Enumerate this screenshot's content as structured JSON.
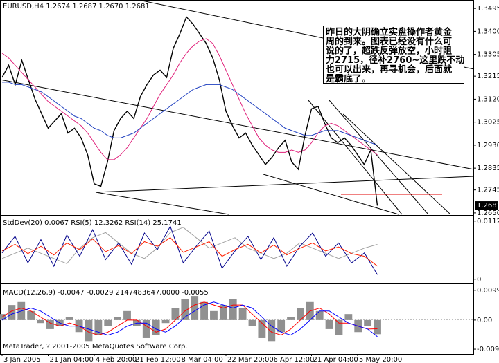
{
  "chart_data": [
    {
      "type": "line",
      "title": "EURUSD,H4 1.2674 1.2687 1.2670 1.2681",
      "annotation": [
        "昨日的大阴确立实盘操作者黄金",
        "周的到来。图表已经没有什么可",
        "说的了，超跌反弹放空，小时阻",
        "力2715，径补2760~这里跌不动",
        "也可以出来，再寻机会，后面就",
        "是霸底了。"
      ],
      "last_price": 1.2681,
      "ylim": [
        1.2644,
        1.3524
      ],
      "yticks": [
        1.3495,
        {
          "value": 1.34,
          "label": "1.3400"
        },
        1.3305,
        1.3215,
        {
          "value": 1.312,
          "label": "1.3120"
        },
        1.3025,
        {
          "value": 1.293,
          "label": "1.2930"
        },
        1.2835,
        1.2745,
        {
          "value": 1.265,
          "label": "1.2650"
        }
      ],
      "xticks": [
        {
          "value": 0,
          "label": "3 Jan 2005"
        },
        {
          "value": 7,
          "label": "21 Jan 04:00"
        },
        {
          "value": 14,
          "label": "4 Feb 20:00"
        },
        {
          "value": 20,
          "label": "21 Feb 12:00"
        },
        {
          "value": 27,
          "label": "8 Mar 04:00"
        },
        {
          "value": 34,
          "label": "22 Mar 20:00"
        },
        {
          "value": 41,
          "label": "6 Apr 12:00"
        },
        {
          "value": 47,
          "label": "21 Apr 04:00"
        },
        {
          "value": 54,
          "label": "5 May 20:00"
        }
      ],
      "series": [
        {
          "color": "#000000",
          "values": [
            1.321,
            1.326,
            1.318,
            1.328,
            1.32,
            1.312,
            1.306,
            1.3,
            1.303,
            1.306,
            1.298,
            1.3,
            1.296,
            1.289,
            1.277,
            1.276,
            1.286,
            1.299,
            1.304,
            1.307,
            1.304,
            1.313,
            1.318,
            1.322,
            1.324,
            1.321,
            1.333,
            1.339,
            1.346,
            1.343,
            1.339,
            1.335,
            1.329,
            1.32,
            1.307,
            1.301,
            1.296,
            1.298,
            1.293,
            1.289,
            1.285,
            1.288,
            1.292,
            1.295,
            1.286,
            1.283,
            1.297,
            1.308,
            1.309,
            1.302,
            1.296,
            1.294,
            1.296,
            1.293,
            1.289,
            1.285,
            1.291,
            1.268
          ]
        },
        {
          "color": "#e0207a",
          "values": [
            1.331,
            1.329,
            1.326,
            1.323,
            1.32,
            1.317,
            1.314,
            1.311,
            1.309,
            1.307,
            1.305,
            1.303,
            1.301,
            1.298,
            1.294,
            1.29,
            1.287,
            1.287,
            1.289,
            1.292,
            1.296,
            1.3,
            1.304,
            1.309,
            1.314,
            1.318,
            1.322,
            1.327,
            1.331,
            1.334,
            1.336,
            1.337,
            1.335,
            1.33,
            1.324,
            1.318,
            1.312,
            1.306,
            1.301,
            1.296,
            1.293,
            1.291,
            1.29,
            1.29,
            1.291,
            1.29,
            1.291,
            1.294,
            1.298,
            1.301,
            1.302,
            1.301,
            1.299,
            1.297,
            1.295,
            1.293,
            1.291,
            1.289
          ]
        },
        {
          "color": "#2040c0",
          "values": [
            1.319,
            1.319,
            1.318,
            1.318,
            1.317,
            1.316,
            1.315,
            1.313,
            1.311,
            1.309,
            1.307,
            1.305,
            1.304,
            1.302,
            1.3,
            1.299,
            1.297,
            1.296,
            1.296,
            1.297,
            1.298,
            1.3,
            1.302,
            1.304,
            1.306,
            1.308,
            1.31,
            1.312,
            1.314,
            1.316,
            1.317,
            1.318,
            1.318,
            1.318,
            1.317,
            1.316,
            1.314,
            1.312,
            1.31,
            1.308,
            1.306,
            1.304,
            1.302,
            1.3,
            1.299,
            1.298,
            1.297,
            1.297,
            1.298,
            1.299,
            1.299,
            1.299,
            1.298,
            1.297,
            1.296,
            1.295,
            1.294,
            1.293
          ]
        }
      ]
    },
    {
      "type": "line",
      "title": "StdDev(20) 0.0067  RSI(5) 12.3262  RSI(14) 25.1741",
      "ylim": [
        -0.0007,
        0.0121
      ],
      "yticks": [
        0.0112,
        0
      ],
      "y2lim": [
        0,
        100
      ],
      "series": [
        {
          "color": "#a0a0a0",
          "values": [
            0.004,
            0.005,
            0.006,
            0.005,
            0.004,
            0.003,
            0.006,
            0.008,
            0.009,
            0.007,
            0.005,
            0.004,
            0.006,
            0.009,
            0.01,
            0.008,
            0.006,
            0.007,
            0.008,
            0.006,
            0.005,
            0.004,
            0.005,
            0.007,
            0.006,
            0.005,
            0.004,
            0.005,
            0.006,
            0.0067
          ]
        },
        {
          "color": "#00008b",
          "axis": "y2",
          "values": [
            45,
            70,
            30,
            65,
            25,
            72,
            40,
            80,
            35,
            60,
            28,
            75,
            50,
            85,
            30,
            55,
            78,
            22,
            48,
            70,
            35,
            68,
            25,
            55,
            75,
            40,
            60,
            30,
            45,
            12.3262
          ]
        },
        {
          "color": "#ff2000",
          "axis": "y2",
          "values": [
            48,
            58,
            44,
            55,
            42,
            60,
            50,
            66,
            47,
            56,
            44,
            62,
            55,
            68,
            46,
            54,
            62,
            40,
            50,
            58,
            45,
            57,
            42,
            52,
            60,
            48,
            54,
            44,
            40,
            25.1741
          ]
        }
      ]
    },
    {
      "type": "bar",
      "title": "MACD(12,26,9) -0.0047 -0.0029 2147483647.0000 -0.0055",
      "ylim": [
        -0.0113,
        0.0117
      ],
      "yticks": [
        0.0099,
        {
          "value": 0,
          "label": "0.00"
        },
        -0.0097
      ],
      "color": "#909090",
      "values": [
        0.002,
        0.005,
        0.006,
        0.003,
        -0.001,
        -0.003,
        -0.002,
        0.001,
        -0.004,
        -0.007,
        -0.005,
        -0.002,
        0.001,
        0.003,
        -0.002,
        -0.006,
        -0.005,
        -0.001,
        0.004,
        0.007,
        0.008,
        0.006,
        0.003,
        0.005,
        0.007,
        0.004,
        -0.002,
        -0.006,
        -0.007,
        -0.004,
        0.001,
        0.004,
        0.006,
        0.003,
        -0.003,
        -0.005,
        0.002,
        -0.004,
        -0.002,
        -0.0047
      ],
      "series": [
        {
          "color": "#ff0000",
          "values": [
            0.001,
            0.003,
            0.004,
            0.003,
            0.001,
            -0.001,
            -0.002,
            -0.001,
            -0.002,
            -0.004,
            -0.005,
            -0.004,
            -0.002,
            0.0,
            0.0,
            -0.002,
            -0.004,
            -0.003,
            0.0,
            0.003,
            0.005,
            0.006,
            0.005,
            0.004,
            0.005,
            0.005,
            0.002,
            -0.001,
            -0.004,
            -0.005,
            -0.003,
            0.0,
            0.003,
            0.004,
            0.002,
            -0.001,
            -0.001,
            -0.002,
            -0.003,
            -0.0029
          ]
        },
        {
          "color": "#0000ff",
          "values": [
            0.0,
            0.002,
            0.003,
            0.004,
            0.003,
            0.001,
            -0.001,
            -0.002,
            -0.002,
            -0.003,
            -0.004,
            -0.005,
            -0.004,
            -0.002,
            -0.001,
            -0.001,
            -0.003,
            -0.004,
            -0.002,
            0.001,
            0.003,
            0.005,
            0.006,
            0.005,
            0.004,
            0.005,
            0.004,
            0.001,
            -0.002,
            -0.004,
            -0.005,
            -0.003,
            0.0,
            0.003,
            0.003,
            0.001,
            -0.001,
            -0.002,
            -0.003,
            -0.0055
          ]
        }
      ]
    }
  ],
  "footer": "MetaTrader, ? 2001-2005 MetaQuotes Software Corp."
}
